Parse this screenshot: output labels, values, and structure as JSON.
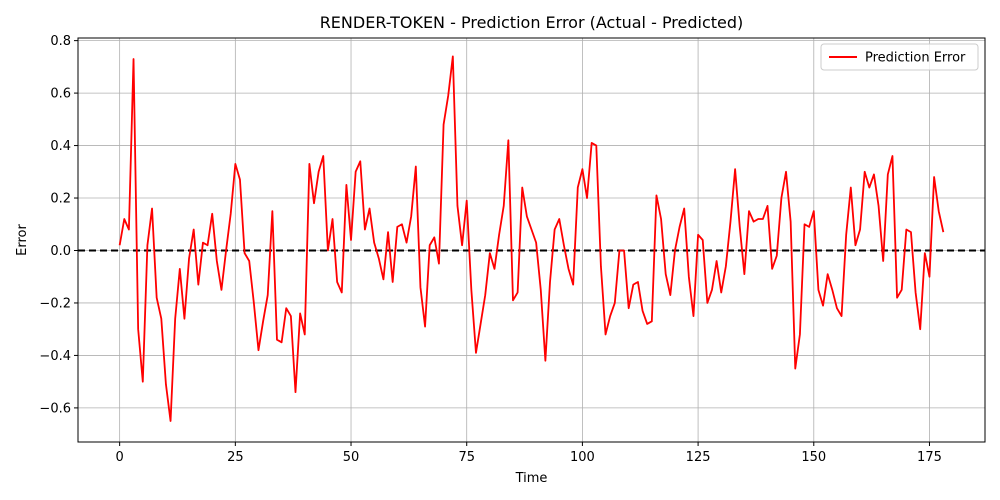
{
  "chart_data": {
    "type": "line",
    "title": "RENDER-TOKEN - Prediction Error (Actual - Predicted)",
    "xlabel": "Time",
    "ylabel": "Error",
    "xlim": [
      -9,
      187
    ],
    "ylim": [
      -0.73,
      0.81
    ],
    "xticks": [
      0,
      25,
      50,
      75,
      100,
      125,
      150,
      175
    ],
    "yticks": [
      -0.6,
      -0.4,
      -0.2,
      0.0,
      0.2,
      0.4,
      0.6,
      0.8
    ],
    "xtick_labels": [
      "0",
      "25",
      "50",
      "75",
      "100",
      "125",
      "150",
      "175"
    ],
    "ytick_labels": [
      "−0.6",
      "−0.4",
      "−0.2",
      "0.0",
      "0.2",
      "0.4",
      "0.6",
      "0.8"
    ],
    "grid": true,
    "legend_position": "top-right",
    "reference_line": {
      "y": 0,
      "color": "#000000",
      "style": "dashed"
    },
    "series": [
      {
        "name": "Prediction Error",
        "color": "#ff0000",
        "values": [
          0.02,
          0.12,
          0.08,
          0.73,
          -0.3,
          -0.5,
          0.02,
          0.16,
          -0.18,
          -0.26,
          -0.51,
          -0.65,
          -0.26,
          -0.07,
          -0.26,
          -0.03,
          0.08,
          -0.13,
          0.03,
          0.02,
          0.14,
          -0.04,
          -0.15,
          0.0,
          0.14,
          0.33,
          0.27,
          -0.01,
          -0.04,
          -0.2,
          -0.38,
          -0.27,
          -0.17,
          0.15,
          -0.34,
          -0.35,
          -0.22,
          -0.25,
          -0.54,
          -0.24,
          -0.32,
          0.33,
          0.18,
          0.3,
          0.36,
          0.0,
          0.12,
          -0.12,
          -0.16,
          0.25,
          0.04,
          0.3,
          0.34,
          0.08,
          0.16,
          0.03,
          -0.03,
          -0.11,
          0.07,
          -0.12,
          0.09,
          0.1,
          0.03,
          0.13,
          0.32,
          -0.14,
          -0.29,
          0.02,
          0.05,
          -0.05,
          0.48,
          0.59,
          0.74,
          0.17,
          0.02,
          0.19,
          -0.15,
          -0.39,
          -0.28,
          -0.17,
          -0.01,
          -0.07,
          0.06,
          0.17,
          0.42,
          -0.19,
          -0.16,
          0.24,
          0.13,
          0.08,
          0.03,
          -0.15,
          -0.42,
          -0.12,
          0.08,
          0.12,
          0.02,
          -0.07,
          -0.13,
          0.24,
          0.31,
          0.2,
          0.41,
          0.4,
          -0.06,
          -0.32,
          -0.25,
          -0.2,
          0.0,
          0.0,
          -0.22,
          -0.13,
          -0.12,
          -0.23,
          -0.28,
          -0.27,
          0.21,
          0.12,
          -0.09,
          -0.17,
          0.0,
          0.09,
          0.16,
          -0.1,
          -0.25,
          0.06,
          0.04,
          -0.2,
          -0.15,
          -0.04,
          -0.16,
          -0.06,
          0.11,
          0.31,
          0.09,
          -0.09,
          0.15,
          0.11,
          0.12,
          0.12,
          0.17,
          -0.07,
          -0.02,
          0.2,
          0.3,
          0.11,
          -0.45,
          -0.32,
          0.1,
          0.09,
          0.15,
          -0.15,
          -0.21,
          -0.09,
          -0.15,
          -0.22,
          -0.25,
          0.06,
          0.24,
          0.02,
          0.08,
          0.3,
          0.24,
          0.29,
          0.17,
          -0.04,
          0.29,
          0.36,
          -0.18,
          -0.15,
          0.08,
          0.07,
          -0.16,
          -0.3,
          -0.01,
          -0.1,
          0.28,
          0.15,
          0.07
        ]
      }
    ]
  }
}
